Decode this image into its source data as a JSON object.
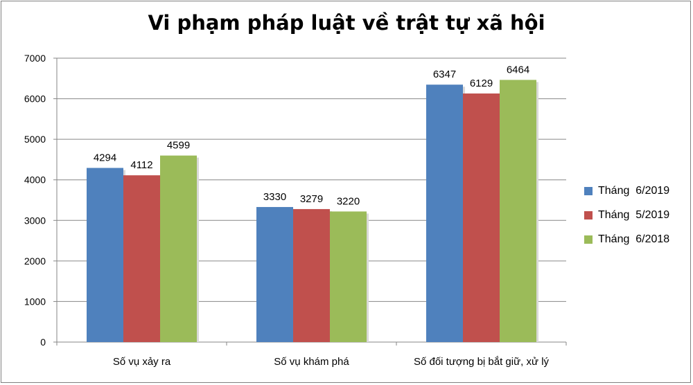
{
  "chart_data": {
    "type": "bar",
    "title": "Vi phạm pháp luật về trật tự xã hội",
    "categories": [
      "Số vụ xảy ra",
      "Số vụ khám phá",
      "Số đối tượng bị bắt giữ, xử lý"
    ],
    "series": [
      {
        "name": "Tháng  6/2019",
        "color": "#4f81bd",
        "values": [
          4294,
          3330,
          6347
        ]
      },
      {
        "name": "Tháng  5/2019",
        "color": "#c0504d",
        "values": [
          4112,
          3279,
          6129
        ]
      },
      {
        "name": "Tháng  6/2018",
        "color": "#9bbb59",
        "values": [
          4599,
          3220,
          6464
        ]
      }
    ],
    "ylim": [
      0,
      7000
    ],
    "yticks": [
      0,
      1000,
      2000,
      3000,
      4000,
      5000,
      6000,
      7000
    ],
    "grid": true,
    "legend_position": "right"
  }
}
